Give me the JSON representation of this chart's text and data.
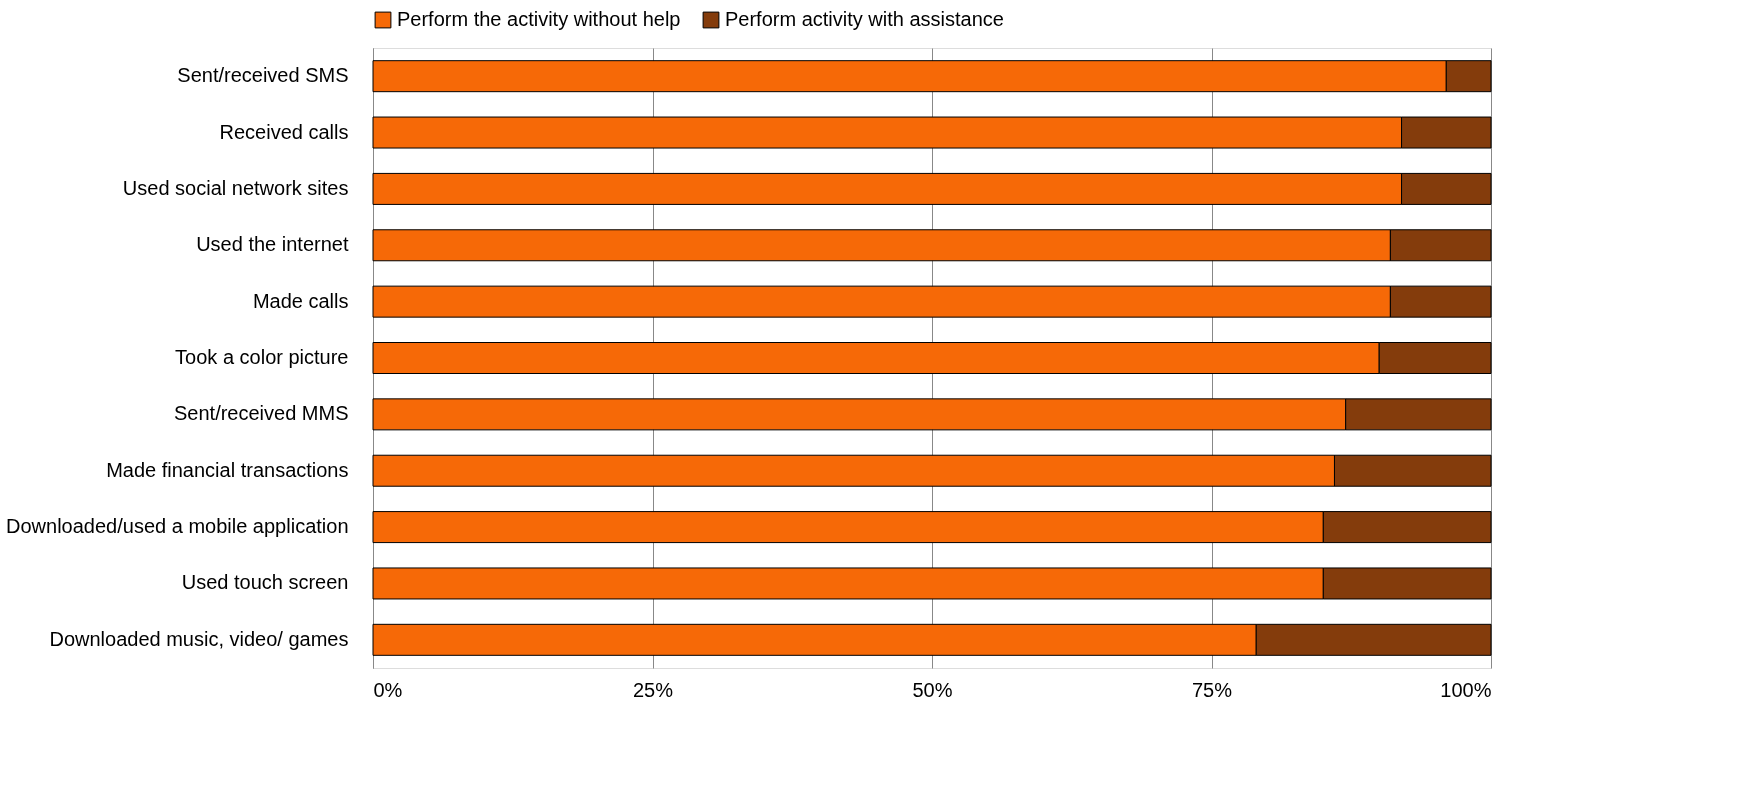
{
  "chart_data": {
    "type": "bar",
    "orientation": "horizontal",
    "stacked": true,
    "categories": [
      "Sent/received SMS",
      "Received calls",
      "Used social network sites",
      "Used the internet",
      "Made calls",
      "Took a color picture",
      "Sent/received MMS",
      "Made financial transactions",
      "Downloaded/used a mobile application",
      "Used touch screen",
      "Downloaded music, video/ games"
    ],
    "series": [
      {
        "name": "Perform the activity without help",
        "color": "#f66907",
        "values": [
          96,
          92,
          92,
          91,
          91,
          90,
          87,
          86,
          85,
          85,
          79
        ]
      },
      {
        "name": "Perform activity with assistance",
        "color": "#843c0c",
        "values": [
          4,
          8,
          8,
          9,
          9,
          10,
          13,
          14,
          15,
          15,
          21
        ]
      }
    ],
    "xlim": [
      0,
      100
    ],
    "xticks": [
      {
        "value": 0,
        "label": "0%"
      },
      {
        "value": 25,
        "label": "25%"
      },
      {
        "value": 50,
        "label": "50%"
      },
      {
        "value": 75,
        "label": "75%"
      },
      {
        "value": 100,
        "label": "100%"
      }
    ],
    "grid": "x",
    "legend": "top"
  }
}
